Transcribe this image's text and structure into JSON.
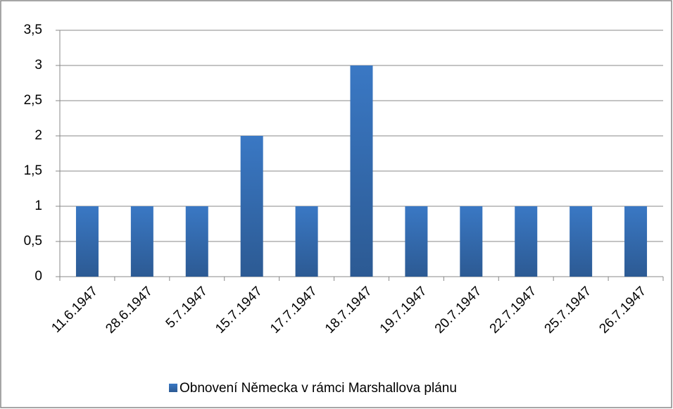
{
  "chart_data": {
    "type": "bar",
    "categories": [
      "11.6.1947",
      "28.6.1947",
      "5.7.1947",
      "15.7.1947",
      "17.7.1947",
      "18.7.1947",
      "19.7.1947",
      "20.7.1947",
      "22.7.1947",
      "25.7.1947",
      "26.7.1947"
    ],
    "series": [
      {
        "name": "Obnovení Německa v rámci Marshallova plánu",
        "color": "#3a78c4",
        "values": [
          1,
          1,
          1,
          2,
          1,
          3,
          1,
          1,
          1,
          1,
          1
        ]
      }
    ],
    "ylim": [
      0,
      3.5
    ],
    "yticks": [
      0,
      {
        "value": 0.5,
        "label": "0,5"
      },
      1,
      {
        "value": 1.5,
        "label": "1,5"
      },
      2,
      {
        "value": 2.5,
        "label": "2,5"
      },
      3,
      {
        "value": 3.5,
        "label": "3,5"
      }
    ],
    "grid": true,
    "legend": "bottom"
  }
}
